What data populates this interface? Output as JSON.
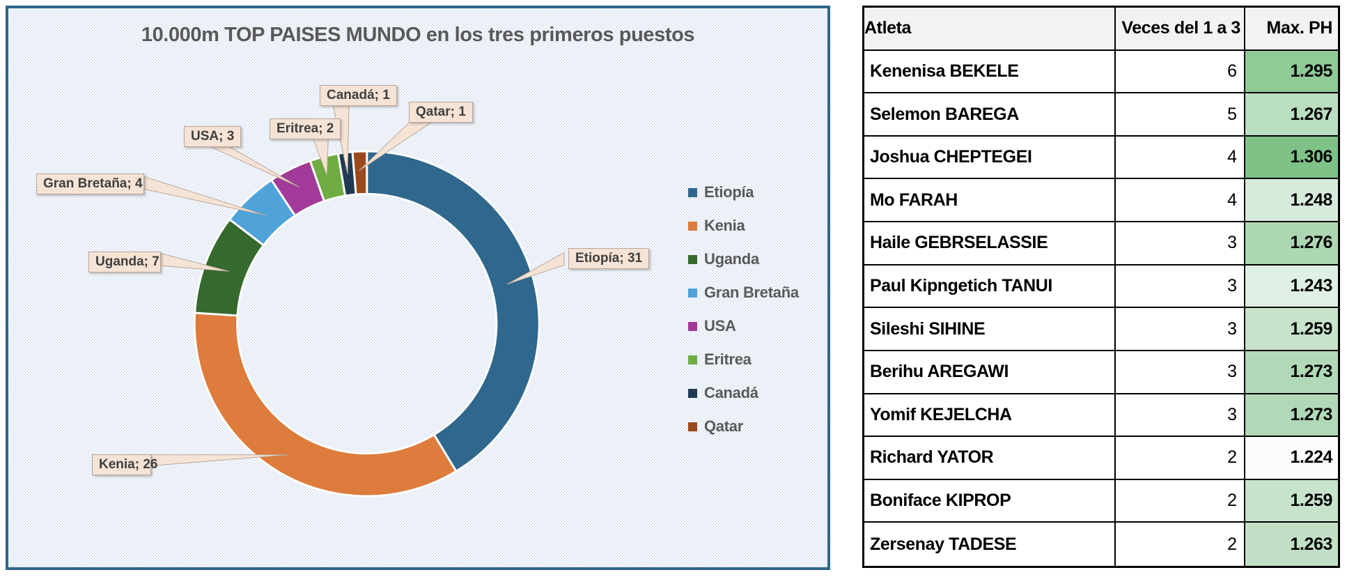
{
  "chart_data": {
    "type": "donut",
    "title": "10.000m TOP PAISES MUNDO en los tres primeros puestos",
    "legend_position": "right",
    "start_angle_deg": 0,
    "direction": "clockwise",
    "slices": [
      {
        "label": "Etiopía",
        "value": 31,
        "color": "#2F688C",
        "callout": "Etiopía; 31"
      },
      {
        "label": "Kenia",
        "value": 26,
        "color": "#DD7C3C",
        "callout": "Kenia; 26"
      },
      {
        "label": "Uganda",
        "value": 7,
        "color": "#35692E",
        "callout": "Uganda; 7"
      },
      {
        "label": "Gran Bretaña",
        "value": 4,
        "color": "#4FA3D9",
        "callout": "Gran Bretaña; 4"
      },
      {
        "label": "USA",
        "value": 3,
        "color": "#A23A99",
        "callout": "USA; 3"
      },
      {
        "label": "Eritrea",
        "value": 2,
        "color": "#6FAC42",
        "callout": "Eritrea; 2"
      },
      {
        "label": "Canadá",
        "value": 1,
        "color": "#1F3A52",
        "callout": "Canadá; 1"
      },
      {
        "label": "Qatar",
        "value": 1,
        "color": "#9B4A1E",
        "callout": "Qatar; 1"
      }
    ]
  },
  "table": {
    "columns": [
      "Atleta",
      "Veces del 1 a 3",
      "Max. PH"
    ],
    "rows": [
      {
        "atleta": "Kenenisa BEKELE",
        "veces": "6",
        "max_ph": "1.295"
      },
      {
        "atleta": "Selemon BAREGA",
        "veces": "5",
        "max_ph": "1.267"
      },
      {
        "atleta": "Joshua CHEPTEGEI",
        "veces": "4",
        "max_ph": "1.306"
      },
      {
        "atleta": "Mo FARAH",
        "veces": "4",
        "max_ph": "1.248"
      },
      {
        "atleta": "Haile GEBRSELASSIE",
        "veces": "3",
        "max_ph": "1.276"
      },
      {
        "atleta": "Paul Kipngetich TANUI",
        "veces": "3",
        "max_ph": "1.243"
      },
      {
        "atleta": "Sileshi SIHINE",
        "veces": "3",
        "max_ph": "1.259"
      },
      {
        "atleta": "Berihu AREGAWI",
        "veces": "3",
        "max_ph": "1.273"
      },
      {
        "atleta": "Yomif KEJELCHA",
        "veces": "3",
        "max_ph": "1.273"
      },
      {
        "atleta": "Richard YATOR",
        "veces": "2",
        "max_ph": "1.224"
      },
      {
        "atleta": "Boniface KIPROP",
        "veces": "2",
        "max_ph": "1.259"
      },
      {
        "atleta": "Zersenay TADESE",
        "veces": "2",
        "max_ph": "1.263"
      }
    ],
    "heat_scale": {
      "min_color": "#FCFCFF",
      "max_color": "#7FC287"
    }
  },
  "colors": {
    "panel_border": "#2E6789",
    "panel_pattern": "#D9E3F1",
    "title_text": "#595959",
    "legend_text": "#595959",
    "callout_bg": "#F5E3D5",
    "callout_border": "#B9A79A",
    "callout_text": "#3F3F3F",
    "table_header_bg": "#F2F2F2",
    "table_border": "#000000"
  }
}
